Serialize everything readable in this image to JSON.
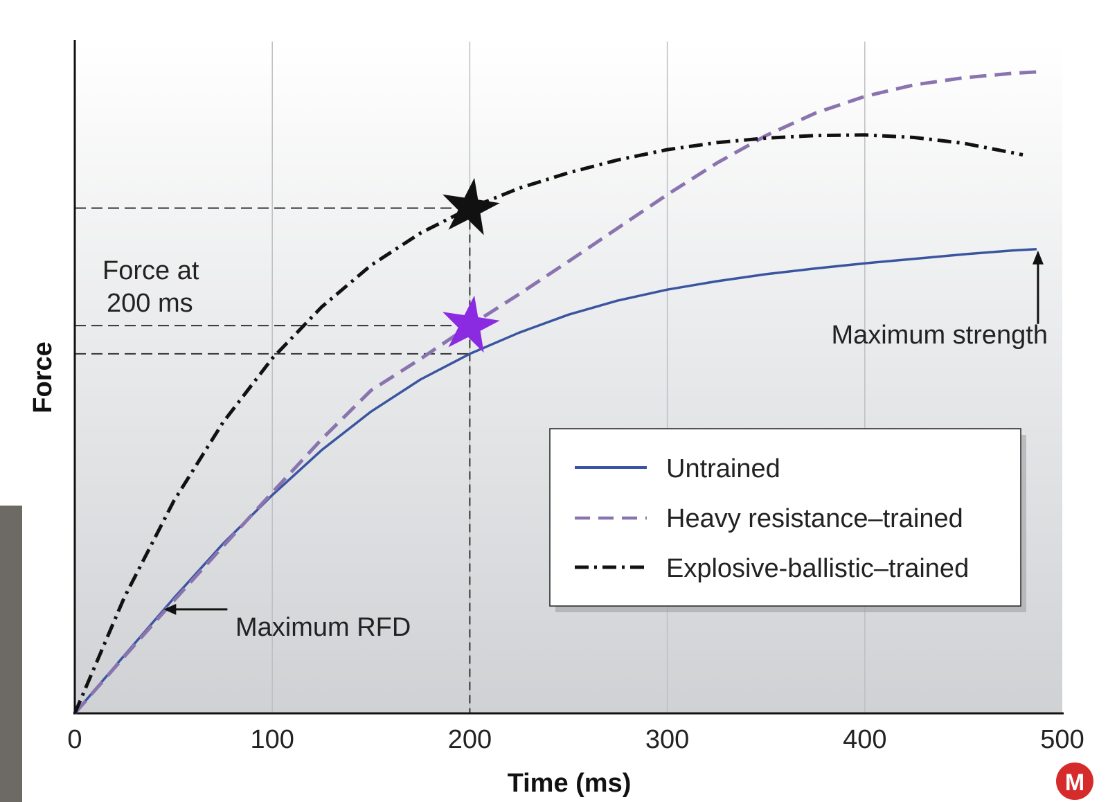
{
  "chart_data": {
    "type": "line",
    "title": "",
    "xlabel": "Time (ms)",
    "ylabel": "Force",
    "xlim": [
      0,
      500
    ],
    "ylim": [
      0,
      100
    ],
    "x_ticks": [
      "0",
      "100",
      "200",
      "300",
      "400",
      "500"
    ],
    "grid": "vertical",
    "legend_position": "lower-right",
    "series": [
      {
        "name": "Untrained",
        "style": "solid",
        "color": "#3a55a0",
        "x": [
          0,
          25,
          50,
          75,
          100,
          125,
          150,
          175,
          200,
          225,
          250,
          275,
          300,
          325,
          350,
          375,
          400,
          425,
          450,
          475,
          487
        ],
        "y": [
          0,
          9.0,
          17.9,
          26.4,
          34.0,
          41.0,
          47.0,
          52.0,
          56.0,
          59.3,
          62.1,
          64.3,
          66.0,
          67.3,
          68.4,
          69.3,
          70.1,
          70.8,
          71.5,
          72.1,
          72.3
        ]
      },
      {
        "name": "Heavy resistance–trained",
        "style": "dashed",
        "color": "#8a74b0",
        "x": [
          0,
          25,
          50,
          75,
          100,
          125,
          150,
          175,
          200,
          225,
          250,
          275,
          300,
          325,
          350,
          375,
          400,
          425,
          450,
          475,
          487
        ],
        "y": [
          0,
          8.8,
          17.5,
          26.0,
          34.4,
          42.7,
          50.3,
          55.2,
          60.4,
          65.3,
          70.4,
          75.6,
          80.8,
          85.7,
          90.0,
          93.5,
          96.1,
          97.9,
          99.0,
          99.7,
          99.9
        ]
      },
      {
        "name": "Explosive-ballistic–trained",
        "style": "dashdot",
        "color": "#111111",
        "x": [
          0,
          25,
          50,
          75,
          100,
          125,
          150,
          175,
          200,
          225,
          250,
          275,
          300,
          325,
          350,
          375,
          400,
          425,
          450,
          480
        ],
        "y": [
          0,
          18.0,
          33.0,
          45.3,
          55.3,
          63.3,
          69.8,
          74.8,
          78.7,
          81.8,
          84.2,
          86.2,
          87.8,
          88.9,
          89.6,
          90.0,
          90.1,
          89.7,
          88.8,
          87.0
        ]
      }
    ],
    "reference_lines": {
      "force_levels_at_200ms": [
        56.0,
        60.4,
        78.7
      ],
      "time_ms": 200
    },
    "markers": [
      {
        "series": "Explosive-ballistic–trained",
        "x": 200,
        "y": 78.7,
        "shape": "star",
        "color": "#111111"
      },
      {
        "series": "Heavy resistance–trained",
        "x": 200,
        "y": 60.4,
        "shape": "star",
        "color": "#8a2be2"
      }
    ],
    "annotations": {
      "force_at_line1": "Force at",
      "force_at_line2": "200 ms",
      "max_rfd": "Maximum RFD",
      "max_rfd_point": {
        "x": 45,
        "y": 16.2
      },
      "max_strength": "Maximum strength",
      "max_strength_point": {
        "x": 487,
        "y": 72.3
      }
    }
  },
  "logo": {
    "letter": "M",
    "color": "#d62b2b"
  }
}
